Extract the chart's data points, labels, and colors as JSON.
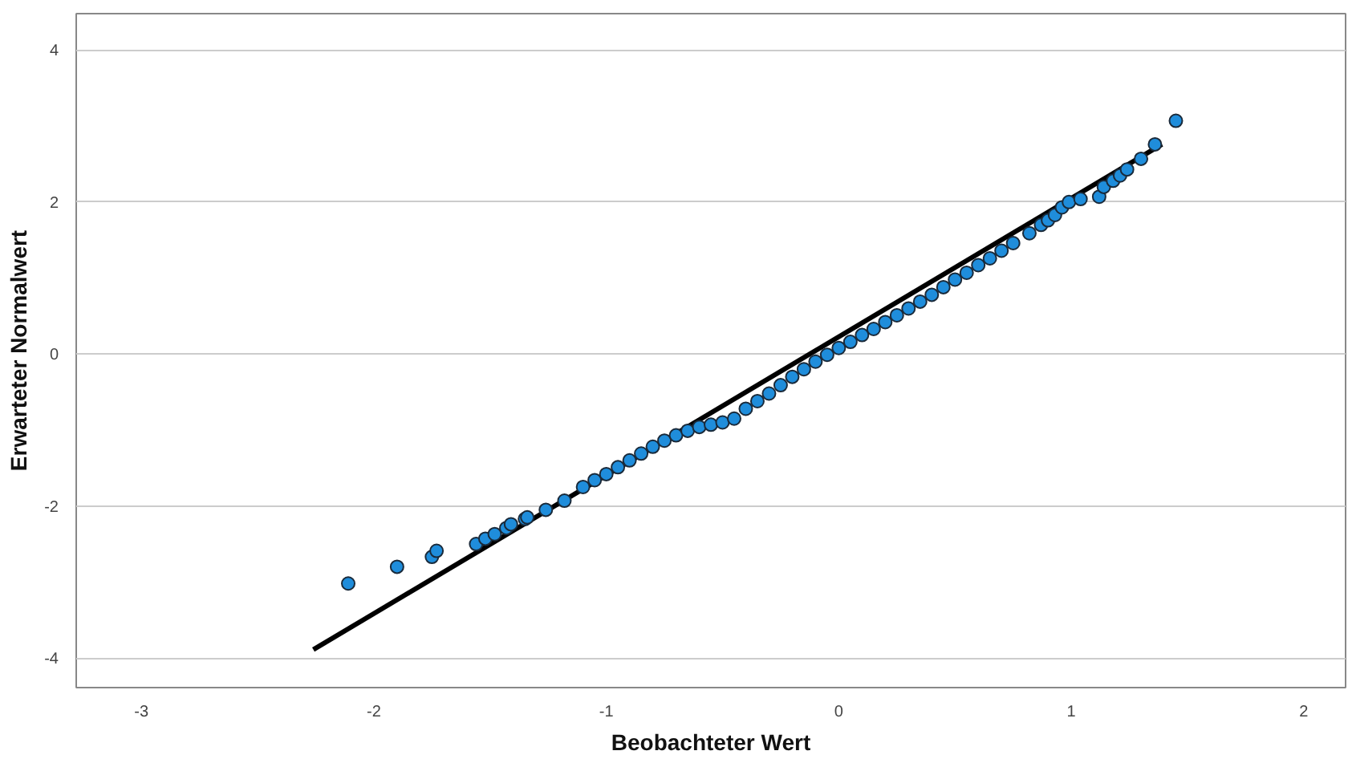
{
  "chart_data": {
    "type": "scatter",
    "xlabel": "Beobachteter Wert",
    "ylabel": "Erwarteter Normalwert",
    "xlim": [
      -3.28,
      2.18
    ],
    "ylim": [
      -4.39,
      4.48
    ],
    "xticks": [
      -3,
      -2,
      -1,
      0,
      1,
      2
    ],
    "yticks": [
      -4,
      -2,
      0,
      2,
      4
    ],
    "grid": "y",
    "series": [
      {
        "marker": "circle",
        "color": "#1f8ddb",
        "x": [
          -2.11,
          -1.9,
          -1.75,
          -1.73,
          -1.56,
          -1.52,
          -1.48,
          -1.43,
          -1.41,
          -1.35,
          -1.34,
          -1.26,
          -1.18,
          -1.1,
          -1.05,
          -1.0,
          -0.95,
          -0.9,
          -0.85,
          -0.8,
          -0.75,
          -0.7,
          -0.65,
          -0.6,
          -0.55,
          -0.5,
          -0.45,
          -0.4,
          -0.35,
          -0.3,
          -0.25,
          -0.2,
          -0.15,
          -0.1,
          -0.05,
          0.0,
          0.05,
          0.1,
          0.15,
          0.2,
          0.25,
          0.3,
          0.35,
          0.4,
          0.45,
          0.5,
          0.55,
          0.6,
          0.65,
          0.7,
          0.75,
          0.82,
          0.87,
          0.9,
          0.93,
          0.96,
          0.99,
          1.04,
          1.12,
          1.14,
          1.18,
          1.21,
          1.24,
          1.3,
          1.36,
          1.45
        ],
        "values": [
          -3.02,
          -2.8,
          -2.67,
          -2.59,
          -2.5,
          -2.43,
          -2.37,
          -2.29,
          -2.24,
          -2.17,
          -2.15,
          -2.05,
          -1.93,
          -1.75,
          -1.66,
          -1.58,
          -1.49,
          -1.4,
          -1.31,
          -1.22,
          -1.14,
          -1.07,
          -1.01,
          -0.96,
          -0.93,
          -0.9,
          -0.85,
          -0.72,
          -0.62,
          -0.52,
          -0.41,
          -0.3,
          -0.2,
          -0.1,
          -0.01,
          0.08,
          0.16,
          0.25,
          0.33,
          0.42,
          0.51,
          0.6,
          0.69,
          0.78,
          0.88,
          0.98,
          1.07,
          1.17,
          1.26,
          1.36,
          1.46,
          1.59,
          1.7,
          1.76,
          1.83,
          1.93,
          2.0,
          2.04,
          2.07,
          2.2,
          2.28,
          2.35,
          2.43,
          2.57,
          2.76,
          3.07
        ]
      },
      {
        "type": "line",
        "marker": "none",
        "color": "#000000",
        "x": [
          -2.26,
          1.39
        ],
        "values": [
          -3.89,
          2.76
        ]
      }
    ]
  }
}
